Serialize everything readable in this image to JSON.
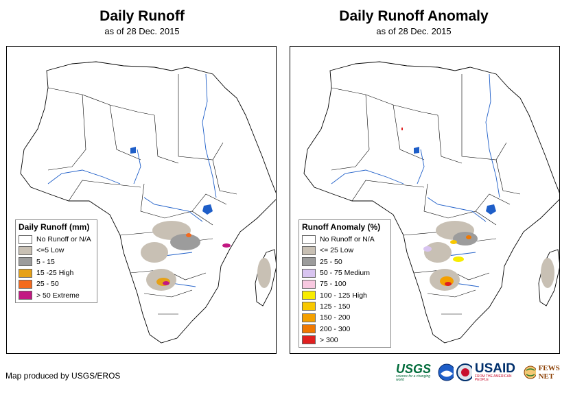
{
  "left_map": {
    "title": "Daily Runoff",
    "subtitle": "as of 28 Dec. 2015",
    "legend_title": "Daily Runoff (mm)",
    "legend": [
      {
        "label": "No Runoff or N/A",
        "color": "#ffffff"
      },
      {
        "label": "<=5 Low",
        "color": "#c8c0b4"
      },
      {
        "label": "5 - 15",
        "color": "#9c9c9c"
      },
      {
        "label": "15 -25 High",
        "color": "#e6a117"
      },
      {
        "label": "25 - 50",
        "color": "#f46a1e"
      },
      {
        "label": "> 50 Extreme",
        "color": "#c21882"
      }
    ]
  },
  "right_map": {
    "title": "Daily Runoff Anomaly",
    "subtitle": "as of 28 Dec. 2015",
    "legend_title": "Runoff Anomaly (%)",
    "legend": [
      {
        "label": "No Runoff or N/A",
        "color": "#ffffff"
      },
      {
        "label": "<= 25 Low",
        "color": "#c8c0b4"
      },
      {
        "label": "25 - 50",
        "color": "#9c9c9c"
      },
      {
        "label": "50 - 75 Medium",
        "color": "#d8c4f0"
      },
      {
        "label": "75 - 100",
        "color": "#f8c8e0"
      },
      {
        "label": "100 - 125 High",
        "color": "#f8ec00"
      },
      {
        "label": "125 - 150",
        "color": "#f8c800"
      },
      {
        "label": "150 - 200",
        "color": "#f4a000"
      },
      {
        "label": "200 - 300",
        "color": "#f07800"
      },
      {
        "label": "> 300",
        "color": "#e02020"
      }
    ]
  },
  "footer": "Map produced by USGS/EROS",
  "logos": {
    "usgs": "USGS",
    "usgs_tagline": "science for a changing world",
    "usaid": "USAID",
    "usaid_tagline": "FROM THE AMERICAN PEOPLE",
    "fewsnet": "FEWS NET"
  }
}
